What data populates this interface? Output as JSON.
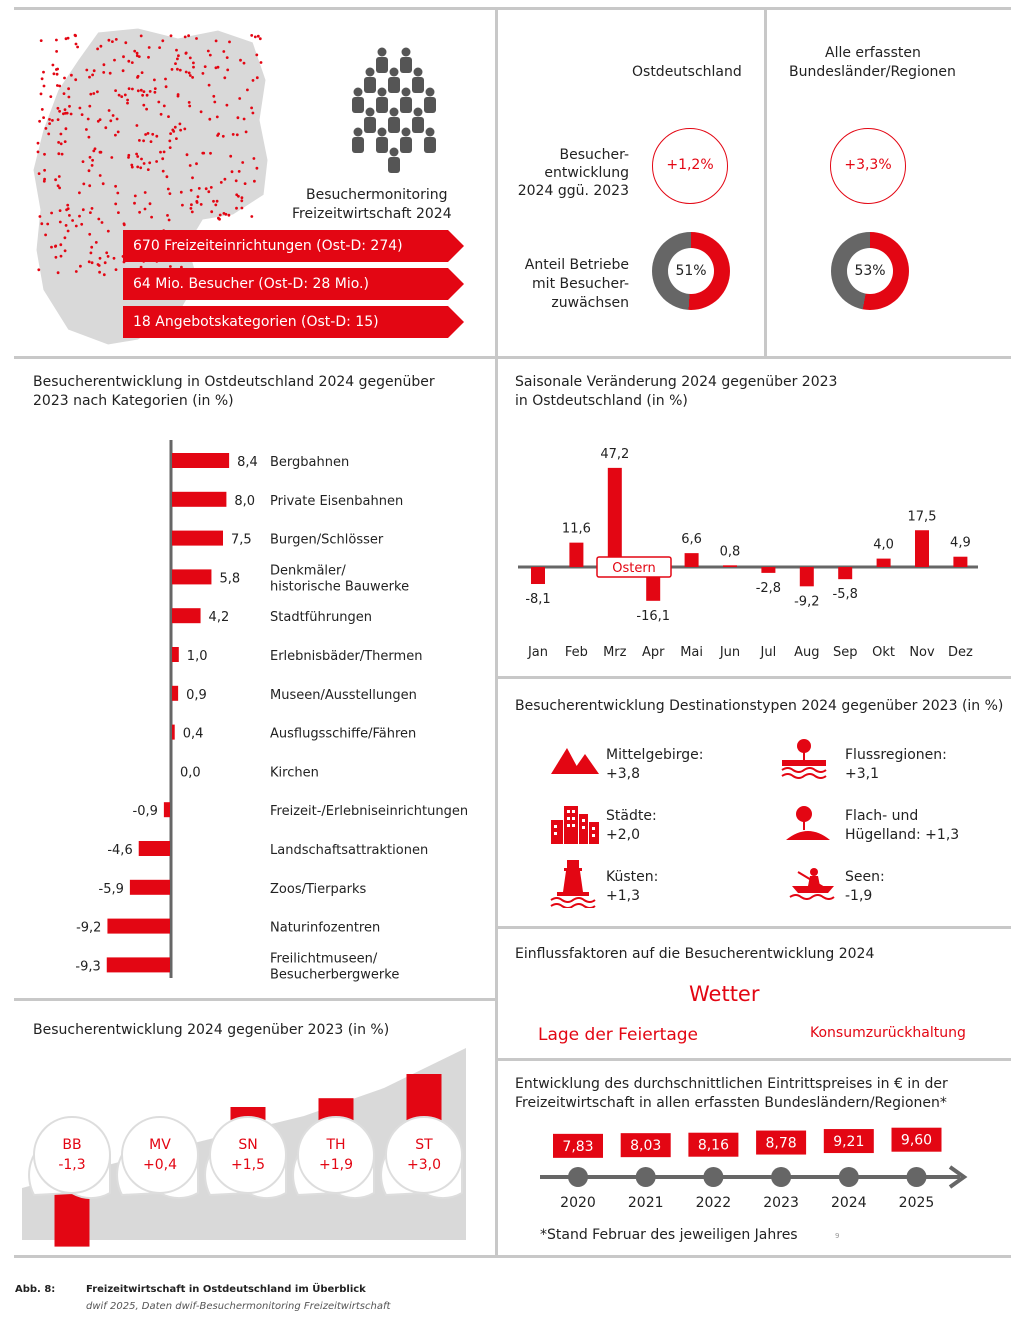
{
  "overview": {
    "monitor_title_line1": "Besuchermonitoring",
    "monitor_title_line2": "Freizeitwirtschaft 2024",
    "facts": [
      "670 Freizeiteinrichtungen (Ost-D: 274)",
      "64 Mio. Besucher (Ost-D: 28 Mio.)",
      "18 Angebotskategorien (Ost-D: 15)"
    ]
  },
  "kpi": {
    "col_east": "Ostdeutschland",
    "col_all_line1": "Alle erfassten",
    "col_all_line2": "Bundesländer/Regionen",
    "row1_label": [
      "Besucher-",
      "entwicklung",
      "2024 ggü. 2023"
    ],
    "row2_label": [
      "Anteil Betriebe",
      "mit Besucher-",
      "zuwächsen"
    ],
    "east_visitor_change": "+1,2%",
    "all_visitor_change": "+3,3%",
    "east_share_growth": "51%",
    "all_share_growth": "53%",
    "east_share_value": 51,
    "all_share_value": 53
  },
  "chart_data": [
    {
      "type": "bar",
      "title": "Besucherentwicklung in Ostdeutschland 2024 gegenüber 2023 nach Kategorien (in %)",
      "title_line1": "Besucherentwicklung in Ostdeutschland 2024 gegenüber",
      "title_line2": "2023 nach Kategorien (in %)",
      "orientation": "horizontal",
      "categories": [
        [
          "Bergbahnen"
        ],
        [
          "Private Eisenbahnen"
        ],
        [
          "Burgen/Schlösser"
        ],
        [
          "Denkmäler/",
          "historische Bauwerke"
        ],
        [
          "Stadtführungen"
        ],
        [
          "Erlebnisbäder/Thermen"
        ],
        [
          "Museen/Ausstellungen"
        ],
        [
          "Ausflugsschiffe/Fähren"
        ],
        [
          "Kirchen"
        ],
        [
          "Freizeit-/Erlebniseinrichtungen"
        ],
        [
          "Landschaftsattraktionen"
        ],
        [
          "Zoos/Tierparks"
        ],
        [
          "Naturinfozentren"
        ],
        [
          "Freilichtmuseen/",
          "Besucherbergwerke"
        ]
      ],
      "values": [
        8.4,
        8.0,
        7.5,
        5.8,
        4.2,
        1.0,
        0.9,
        0.4,
        0.0,
        -0.9,
        -4.6,
        -5.9,
        -9.2,
        -9.3
      ],
      "value_labels": [
        "8,4",
        "8,0",
        "7,5",
        "5,8",
        "4,2",
        "1,0",
        "0,9",
        "0,4",
        "0,0",
        "-0,9",
        "-4,6",
        "-5,9",
        "-9,2",
        "-9,3"
      ]
    },
    {
      "type": "bar",
      "title": "Saisonale Veränderung 2024 gegenüber 2023 in Ostdeutschland (in %)",
      "title_line1": "Saisonale Veränderung 2024 gegenüber 2023",
      "title_line2": "in Ostdeutschland (in %)",
      "categories": [
        "Jan",
        "Feb",
        "Mrz",
        "Apr",
        "Mai",
        "Jun",
        "Jul",
        "Aug",
        "Sep",
        "Okt",
        "Nov",
        "Dez"
      ],
      "values": [
        -8.1,
        11.6,
        47.2,
        -16.1,
        6.6,
        0.8,
        -2.8,
        -9.2,
        -5.8,
        4.0,
        17.5,
        4.9
      ],
      "value_labels": [
        "-8,1",
        "11,6",
        "47,2",
        "-16,1",
        "6,6",
        "0,8",
        "-2,8",
        "-9,2",
        "-5,8",
        "4,0",
        "17,5",
        "4,9"
      ],
      "annotation": "Ostern"
    },
    {
      "type": "bar",
      "title": "Besucherentwicklung 2024 gegenüber 2023 (in %)",
      "categories": [
        "BB",
        "MV",
        "SN",
        "TH",
        "ST"
      ],
      "values": [
        -1.3,
        0.4,
        1.5,
        1.9,
        3.0
      ],
      "value_labels": [
        "-1,3",
        "+0,4",
        "+1,5",
        "+1,9",
        "+3,0"
      ]
    },
    {
      "type": "line",
      "title": "Entwicklung des durchschnittlichen Eintrittspreises in € in der Freizeitwirtschaft in allen erfassten Bundesländern/Regionen*",
      "title_line1": "Entwicklung des durchschnittlichen Eintrittspreises in € in der",
      "title_line2": "Freizeitwirtschaft in allen erfassten Bundesländern/Regionen*",
      "x": [
        "2020",
        "2021",
        "2022",
        "2023",
        "2024",
        "2025"
      ],
      "values": [
        7.83,
        8.03,
        8.16,
        8.78,
        9.21,
        9.6
      ],
      "value_labels": [
        "7,83",
        "8,03",
        "8,16",
        "8,78",
        "9,21",
        "9,60"
      ],
      "footnote": "*Stand Februar des jeweiligen Jahres",
      "page_mark": "9"
    }
  ],
  "destinations": {
    "title": "Besucherentwicklung Destinationstypen 2024 gegenüber 2023 (in %)",
    "items": [
      {
        "l1": "Mittelgebirge:",
        "l2": "+3,8",
        "icon": "mountain-icon"
      },
      {
        "l1": "Flussregionen:",
        "l2": "+3,1",
        "icon": "river-icon"
      },
      {
        "l1": "Städte:",
        "l2": "+2,0",
        "icon": "city-icon"
      },
      {
        "l1": "Flach- und",
        "l2": "Hügelland: +1,3",
        "icon": "hill-tree-icon"
      },
      {
        "l1": "Küsten:",
        "l2": "+1,3",
        "icon": "lighthouse-icon"
      },
      {
        "l1": "Seen:",
        "l2": "-1,9",
        "icon": "boat-icon"
      }
    ]
  },
  "factors": {
    "title": "Einflussfaktoren auf die Besucherentwicklung 2024",
    "main": "Wetter",
    "left": "Lage der Feiertage",
    "right": "Konsumzurückhaltung"
  },
  "caption": {
    "label": "Abb. 8:",
    "title": "Freizeitwirtschaft in Ostdeutschland im Überblick",
    "source": "dwif 2025, Daten dwif-Besuchermonitoring Freizeitwirtschaft"
  },
  "colors": {
    "accent": "#e30613",
    "grey": "#666666",
    "light": "#d9d9d9"
  }
}
